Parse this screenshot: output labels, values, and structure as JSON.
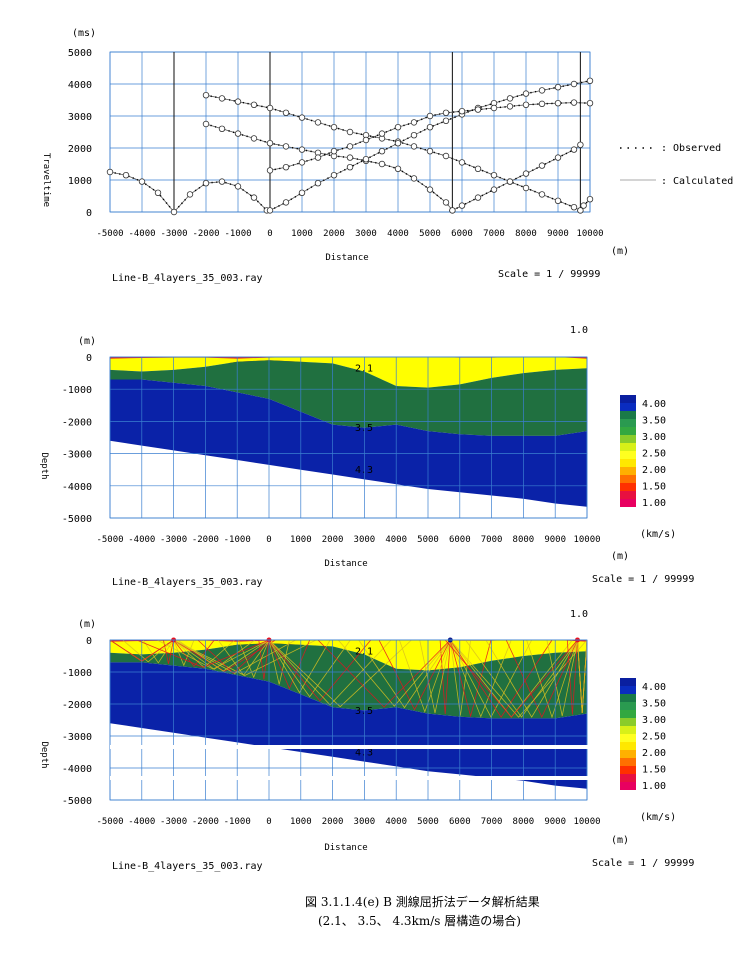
{
  "caption": {
    "line1": "図 3.1.1.4(e)  B 測線屈折法データ解析結果",
    "line2": "(2.1、 3.5、 4.3km/s 層構造の場合)"
  },
  "chart_data": [
    {
      "type": "scatter",
      "panel": "traveltime",
      "xlabel": "Distance",
      "ylabel": "Traveltime",
      "x_unit": "(m)",
      "y_unit": "(ms)",
      "xlim": [
        -5000,
        10000
      ],
      "ylim": [
        0,
        5000
      ],
      "xticks": [
        "-5000",
        "-4000",
        "-3000",
        "-2000",
        "-1000",
        "0",
        "1000",
        "2000",
        "3000",
        "4000",
        "5000",
        "6000",
        "7000",
        "8000",
        "9000",
        "10000"
      ],
      "yticks": [
        "0",
        "1000",
        "2000",
        "3000",
        "4000",
        "5000"
      ],
      "shot_lines": [
        -3000,
        0,
        5700,
        9700
      ],
      "legend": {
        "observed": ": Observed",
        "calculated": ": Calculated"
      },
      "filename": "Line-B_4layers_35_003.ray",
      "scale": "Scale = 1 / 99999",
      "series": [
        {
          "x": [
            -5000,
            -4500,
            -4000,
            -3500,
            -3000,
            -2500,
            -2000,
            -1500,
            -1000,
            -500,
            -100
          ],
          "y": [
            1250,
            1150,
            950,
            600,
            0,
            550,
            900,
            950,
            800,
            450,
            50
          ]
        },
        {
          "x": [
            -2000,
            -1500,
            -1000,
            -500,
            0,
            500,
            1000,
            1500,
            2000,
            2500,
            3000,
            3500,
            4000,
            4500,
            5000,
            5500,
            5700
          ],
          "y": [
            2750,
            2600,
            2450,
            2300,
            2150,
            2050,
            1950,
            1850,
            1750,
            1700,
            1600,
            1500,
            1350,
            1050,
            700,
            300,
            50
          ]
        },
        {
          "x": [
            -2000,
            -1500,
            -1000,
            -500,
            0,
            500,
            1000,
            1500,
            2000,
            2500,
            3000,
            3500,
            4000,
            4500,
            5000,
            5500,
            6000,
            6500,
            7000,
            7500,
            8000,
            8500,
            9000,
            9500,
            9700
          ],
          "y": [
            3650,
            3550,
            3450,
            3350,
            3250,
            3100,
            2950,
            2800,
            2650,
            2500,
            2400,
            2300,
            2200,
            2050,
            1900,
            1750,
            1550,
            1350,
            1150,
            950,
            750,
            550,
            350,
            150,
            50
          ]
        },
        {
          "x": [
            0,
            500,
            1000,
            1500,
            2000,
            2500,
            3000,
            3500,
            4000,
            4500,
            5000,
            5500,
            6000,
            6500,
            7000,
            7500,
            8000,
            8500,
            9000,
            9500,
            10000
          ],
          "y": [
            50,
            300,
            600,
            900,
            1150,
            1400,
            1650,
            1900,
            2150,
            2400,
            2650,
            2850,
            3050,
            3250,
            3400,
            3550,
            3700,
            3800,
            3900,
            4000,
            4100
          ]
        },
        {
          "x": [
            0,
            500,
            1000,
            1500,
            2000,
            2500,
            3000,
            3500,
            4000,
            4500,
            5000,
            5500,
            6000,
            6500,
            7000,
            7500,
            8000,
            8500,
            9000,
            9500,
            10000
          ],
          "y": [
            1300,
            1400,
            1550,
            1700,
            1900,
            2050,
            2250,
            2450,
            2650,
            2800,
            3000,
            3100,
            3150,
            3200,
            3250,
            3300,
            3350,
            3380,
            3400,
            3420,
            3400
          ]
        },
        {
          "x": [
            5700,
            6000,
            6500,
            7000,
            7500,
            8000,
            8500,
            9000,
            9500,
            9700
          ],
          "y": [
            50,
            200,
            450,
            700,
            950,
            1200,
            1450,
            1700,
            1950,
            2100
          ]
        },
        {
          "x": [
            9700,
            9800,
            10000
          ],
          "y": [
            50,
            200,
            400
          ]
        }
      ]
    },
    {
      "type": "area",
      "panel": "velocity_model",
      "xlabel": "Distance",
      "ylabel": "Depth",
      "x_unit": "(m)",
      "y_unit": "(m)",
      "corner_label": "1.0",
      "xlim": [
        -5000,
        10000
      ],
      "ylim": [
        -5000,
        0
      ],
      "xticks": [
        "-5000",
        "-4000",
        "-3000",
        "-2000",
        "-1000",
        "0",
        "1000",
        "2000",
        "3000",
        "4000",
        "5000",
        "6000",
        "7000",
        "8000",
        "9000",
        "10000"
      ],
      "yticks": [
        "0",
        "-1000",
        "-2000",
        "-3000",
        "-4000",
        "-5000"
      ],
      "layer_labels": [
        "2.1",
        "3.5",
        "4.3"
      ],
      "filename": "Line-B_4layers_35_003.ray",
      "scale": "Scale = 1 / 99999",
      "colorbar": {
        "unit": "(km/s)",
        "labels": [
          "4.00",
          "3.50",
          "3.00",
          "2.50",
          "2.00",
          "1.50",
          "1.00"
        ]
      },
      "boundaries": {
        "x": [
          -5000,
          -4000,
          -3000,
          -2000,
          -1000,
          0,
          1000,
          2000,
          3000,
          4000,
          5000,
          6000,
          7000,
          8000,
          9000,
          10000
        ],
        "surface": [
          -50,
          -30,
          -20,
          -20,
          -50,
          -20,
          0,
          0,
          0,
          -10,
          0,
          -20,
          -20,
          0,
          0,
          -50
        ],
        "base_layer1": [
          -400,
          -450,
          -400,
          -300,
          -150,
          -100,
          -150,
          -200,
          -450,
          -900,
          -950,
          -850,
          -650,
          -500,
          -400,
          -350
        ],
        "base_layer2": [
          -700,
          -700,
          -800,
          -900,
          -1100,
          -1300,
          -1700,
          -2100,
          -2200,
          -2100,
          -2300,
          -2400,
          -2450,
          -2450,
          -2450,
          -2300
        ],
        "base_layer3": [
          -2600,
          -2750,
          -2900,
          -3050,
          -3200,
          -3350,
          -3500,
          -3650,
          -3800,
          -3950,
          -4100,
          -4200,
          -4300,
          -4400,
          -4550,
          -4650
        ]
      }
    },
    {
      "type": "area",
      "panel": "ray_tracing",
      "xlabel": "Distance",
      "ylabel": "Depth",
      "x_unit": "(m)",
      "y_unit": "(m)",
      "corner_label": "1.0",
      "xlim": [
        -5000,
        10000
      ],
      "ylim": [
        -5000,
        0
      ],
      "xticks": [
        "-5000",
        "-4000",
        "-3000",
        "-2000",
        "-1000",
        "0",
        "1000",
        "2000",
        "3000",
        "4000",
        "5000",
        "6000",
        "7000",
        "8000",
        "9000",
        "10000"
      ],
      "yticks": [
        "0",
        "-1000",
        "-2000",
        "-3000",
        "-4000",
        "-5000"
      ],
      "layer_labels": [
        "2.1",
        "3.5",
        "4.3"
      ],
      "filename": "Line-B_4layers_35_003.ray",
      "scale": "Scale = 1 / 99999",
      "colorbar": {
        "unit": "(km/s)",
        "labels": [
          "4.00",
          "3.50",
          "3.00",
          "2.50",
          "2.00",
          "1.50",
          "1.00"
        ]
      }
    }
  ]
}
